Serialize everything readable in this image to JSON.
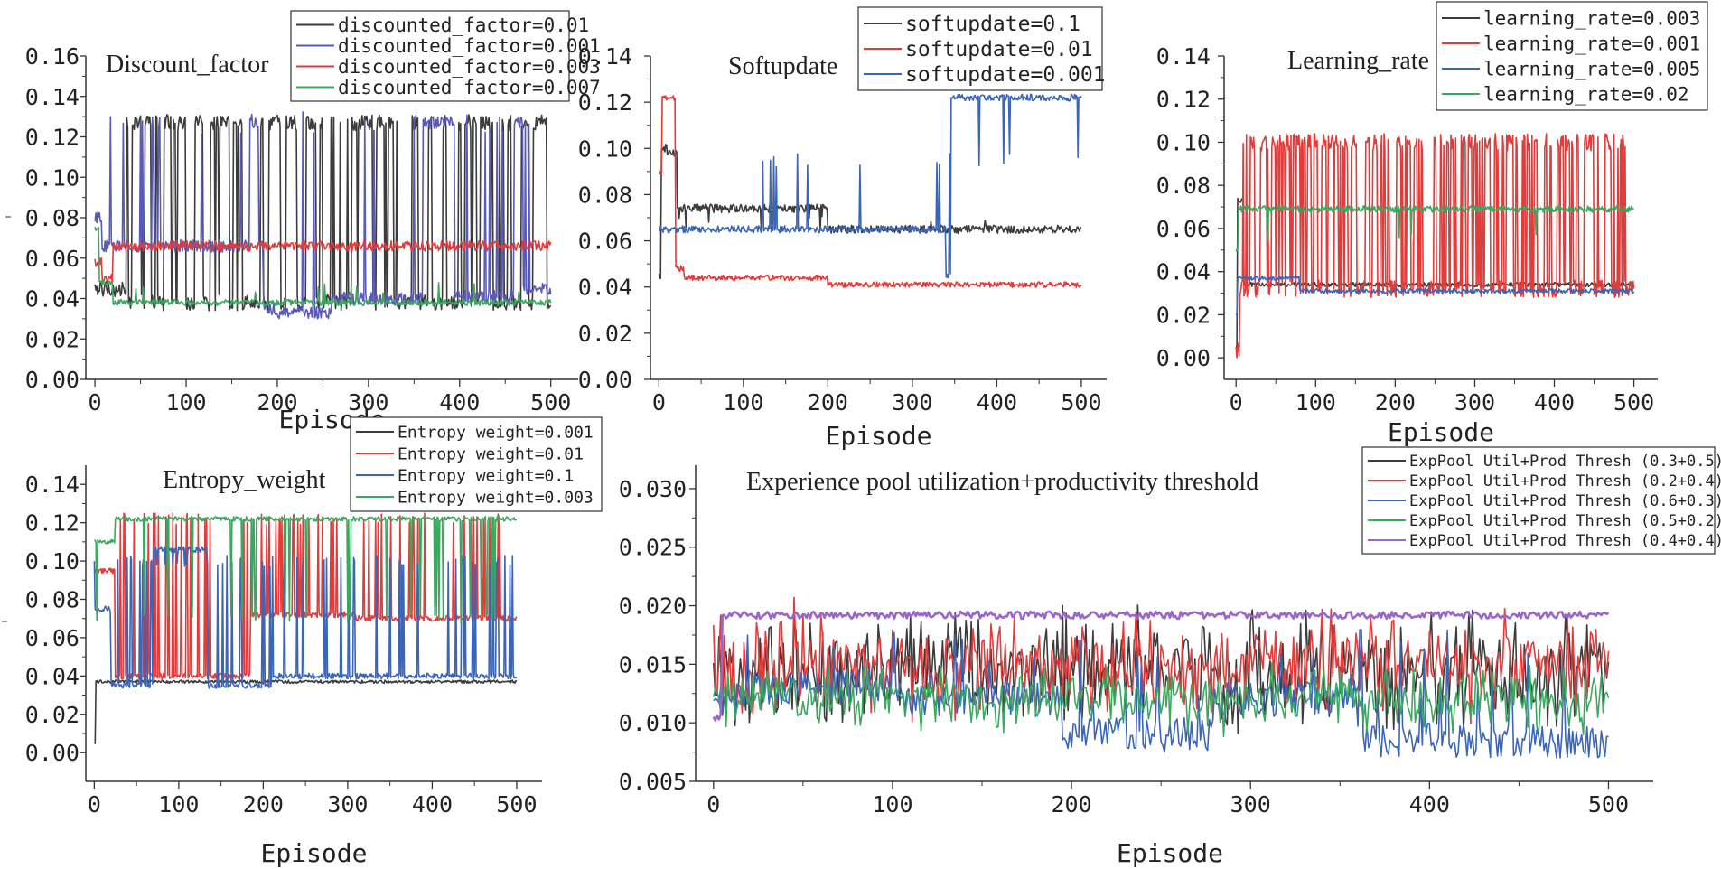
{
  "chart_data": [
    {
      "type": "line",
      "title": "Discount_factor",
      "xlabel": "Episode",
      "ylabel": "",
      "xlim": [
        -10,
        530
      ],
      "ylim": [
        0.0,
        0.16
      ],
      "xticks": [
        0,
        100,
        200,
        300,
        400,
        500
      ],
      "xtick_labels": [
        "0",
        "100",
        "200",
        "300",
        "400",
        "500"
      ],
      "yticks": [
        0.0,
        0.02,
        0.04,
        0.06,
        0.08,
        0.1,
        0.12,
        0.14,
        0.16
      ],
      "ytick_labels": [
        "0.00",
        "0.02",
        "0.04",
        "0.06",
        "0.08",
        "0.10",
        "0.12",
        "0.14",
        "0.16"
      ],
      "legend_position": "top-right",
      "series": [
        {
          "name": "discounted_factor=0.01",
          "color": "#3c3c3c",
          "pattern": "switch",
          "seed": 11,
          "lo": 0.038,
          "hi": 0.127,
          "start": 0.045,
          "phase_end": 35,
          "noise": 0.004,
          "switch_prob": 0.22,
          "start_hi": 1
        },
        {
          "name": "discounted_factor=0.001",
          "color": "#5a5ab8",
          "pattern": "blocks",
          "seed": 23,
          "noise": 0.003,
          "blocks": [
            [
              0,
              8,
              0.08
            ],
            [
              8,
              170,
              0.066
            ],
            [
              170,
              180,
              0.127
            ],
            [
              180,
              185,
              0.066
            ],
            [
              185,
              200,
              0.035
            ],
            [
              200,
              260,
              0.033
            ],
            [
              260,
              330,
              0.04
            ],
            [
              330,
              360,
              0.04
            ],
            [
              360,
              395,
              0.127
            ],
            [
              395,
              460,
              0.041
            ],
            [
              460,
              470,
              0.127
            ],
            [
              470,
              501,
              0.045
            ]
          ],
          "spike_prob": 0.04,
          "spike_val": 0.127
        },
        {
          "name": "discounted_factor=0.003",
          "color": "#e33a3a",
          "pattern": "blocks",
          "seed": 37,
          "noise": 0.0025,
          "blocks": [
            [
              0,
              8,
              0.058
            ],
            [
              8,
              20,
              0.05
            ],
            [
              20,
              501,
              0.066
            ]
          ],
          "spike_prob": 0.0,
          "spike_val": 0.066
        },
        {
          "name": "discounted_factor=0.007",
          "color": "#3aa85f",
          "pattern": "blocks",
          "seed": 51,
          "noise": 0.0015,
          "blocks": [
            [
              0,
              5,
              0.075
            ],
            [
              5,
              20,
              0.048
            ],
            [
              20,
              501,
              0.038
            ]
          ],
          "spike_prob": 0.015,
          "spike_val": 0.045
        }
      ]
    },
    {
      "type": "line",
      "title": "Softupdate",
      "xlabel": "Episode",
      "ylabel": "",
      "xlim": [
        -10,
        530
      ],
      "ylim": [
        0.0,
        0.14
      ],
      "xticks": [
        0,
        100,
        200,
        300,
        400,
        500
      ],
      "xtick_labels": [
        "0",
        "100",
        "200",
        "300",
        "400",
        "500"
      ],
      "yticks": [
        0.0,
        0.02,
        0.04,
        0.06,
        0.08,
        0.1,
        0.12,
        0.14
      ],
      "ytick_labels": [
        "0.00",
        "0.02",
        "0.04",
        "0.06",
        "0.08",
        "0.10",
        "0.12",
        "0.14"
      ],
      "legend_position": "top-right",
      "series": [
        {
          "name": "softupdate=0.1",
          "color": "#3c3c3c",
          "pattern": "blocks",
          "seed": 61,
          "noise": 0.0018,
          "blocks": [
            [
              0,
              3,
              0.045
            ],
            [
              3,
              10,
              0.1
            ],
            [
              10,
              22,
              0.098
            ],
            [
              22,
              200,
              0.074
            ],
            [
              200,
              501,
              0.065
            ]
          ],
          "spike_prob": 0.02,
          "spike_val": 0.068
        },
        {
          "name": "softupdate=0.01",
          "color": "#e33a3a",
          "pattern": "blocks",
          "seed": 73,
          "noise": 0.0012,
          "blocks": [
            [
              0,
              4,
              0.09
            ],
            [
              4,
              20,
              0.122
            ],
            [
              20,
              30,
              0.048
            ],
            [
              30,
              200,
              0.044
            ],
            [
              200,
              501,
              0.041
            ]
          ],
          "spike_prob": 0.0,
          "spike_val": 0.044
        },
        {
          "name": "softupdate=0.001",
          "color": "#3a65b8",
          "pattern": "blocks",
          "seed": 89,
          "noise": 0.0015,
          "blocks": [
            [
              0,
              340,
              0.065
            ],
            [
              340,
              346,
              0.045
            ],
            [
              346,
              501,
              0.122
            ]
          ],
          "spike_prob": 0.025,
          "spike_val": 0.095
        }
      ]
    },
    {
      "type": "line",
      "title": "Learning_rate",
      "xlabel": "Episode",
      "ylabel": "",
      "xlim": [
        -15,
        530
      ],
      "ylim": [
        -0.01,
        0.14
      ],
      "xticks": [
        0,
        100,
        200,
        300,
        400,
        500
      ],
      "xtick_labels": [
        "0",
        "100",
        "200",
        "300",
        "400",
        "500"
      ],
      "yticks": [
        0.0,
        0.02,
        0.04,
        0.06,
        0.08,
        0.1,
        0.12,
        0.14
      ],
      "ytick_labels": [
        "0.00",
        "0.02",
        "0.04",
        "0.06",
        "0.08",
        "0.10",
        "0.12",
        "0.14"
      ],
      "legend_position": "top-right",
      "series": [
        {
          "name": "learning_rate=0.003",
          "color": "#3c3c3c",
          "pattern": "blocks",
          "seed": 97,
          "noise": 0.001,
          "blocks": [
            [
              0,
              2,
              0.005
            ],
            [
              2,
              10,
              0.073
            ],
            [
              10,
              501,
              0.034
            ]
          ],
          "spike_prob": 0.0,
          "spike_val": 0.034
        },
        {
          "name": "learning_rate=0.001",
          "color": "#e33a3a",
          "pattern": "switch",
          "seed": 103,
          "lo": 0.032,
          "hi": 0.1,
          "start": 0.003,
          "phase_end": 5,
          "noise": 0.004,
          "switch_prob": 0.3,
          "start_hi": 1
        },
        {
          "name": "learning_rate=0.005",
          "color": "#3a65b8",
          "pattern": "blocks",
          "seed": 109,
          "noise": 0.001,
          "blocks": [
            [
              0,
              2,
              0.02
            ],
            [
              2,
              80,
              0.037
            ],
            [
              80,
              501,
              0.031
            ]
          ],
          "spike_prob": 0.0,
          "spike_val": 0.031
        },
        {
          "name": "learning_rate=0.02",
          "color": "#3aa85f",
          "pattern": "blocks",
          "seed": 113,
          "noise": 0.0015,
          "blocks": [
            [
              0,
              3,
              0.05
            ],
            [
              3,
              501,
              0.069
            ]
          ],
          "spike_prob": 0.02,
          "spike_val": 0.055
        }
      ]
    },
    {
      "type": "line",
      "title": "Entropy_weight",
      "xlabel": "Episode",
      "ylabel": "",
      "xlim": [
        -10,
        530
      ],
      "ylim": [
        -0.015,
        0.15
      ],
      "xticks": [
        0,
        100,
        200,
        300,
        400,
        500
      ],
      "xtick_labels": [
        "0",
        "100",
        "200",
        "300",
        "400",
        "500"
      ],
      "yticks": [
        0.0,
        0.02,
        0.04,
        0.06,
        0.08,
        0.1,
        0.12,
        0.14
      ],
      "ytick_labels": [
        "0.00",
        "0.02",
        "0.04",
        "0.06",
        "0.08",
        "0.10",
        "0.12",
        "0.14"
      ],
      "legend_position": "top-right",
      "series": [
        {
          "name": "Entropy weight=0.001",
          "color": "#3c3c3c",
          "pattern": "blocks",
          "seed": 127,
          "noise": 0.0008,
          "blocks": [
            [
              0,
              2,
              0.005
            ],
            [
              2,
              501,
              0.037
            ]
          ],
          "spike_prob": 0.0,
          "spike_val": 0.037
        },
        {
          "name": "Entropy weight=0.01",
          "color": "#e33a3a",
          "pattern": "blocks",
          "seed": 131,
          "noise": 0.0015,
          "blocks": [
            [
              0,
              25,
              0.095
            ],
            [
              25,
              185,
              0.04
            ],
            [
              185,
              310,
              0.072
            ],
            [
              310,
              501,
              0.07
            ]
          ],
          "spike_prob": 0.12,
          "spike_val": 0.122
        },
        {
          "name": "Entropy weight=0.1",
          "color": "#3a65b8",
          "pattern": "blocks",
          "seed": 137,
          "noise": 0.0015,
          "blocks": [
            [
              0,
              20,
              0.075
            ],
            [
              20,
              70,
              0.035
            ],
            [
              70,
              135,
              0.106
            ],
            [
              135,
              210,
              0.035
            ],
            [
              210,
              501,
              0.04
            ]
          ],
          "spike_prob": 0.12,
          "spike_val": 0.1
        },
        {
          "name": "Entropy weight=0.003",
          "color": "#3aa85f",
          "pattern": "blocks",
          "seed": 139,
          "noise": 0.0012,
          "blocks": [
            [
              0,
              25,
              0.11
            ],
            [
              25,
              501,
              0.122
            ]
          ],
          "spike_prob": 0.07,
          "spike_val": 0.07
        }
      ]
    },
    {
      "type": "line",
      "title": "Experience pool utilization+productivity threshold",
      "xlabel": "Episode",
      "ylabel": "",
      "xlim": [
        -10,
        525
      ],
      "ylim": [
        0.005,
        0.032
      ],
      "xticks": [
        0,
        100,
        200,
        300,
        400,
        500
      ],
      "xtick_labels": [
        "0",
        "100",
        "200",
        "300",
        "400",
        "500"
      ],
      "yticks": [
        0.005,
        0.01,
        0.015,
        0.02,
        0.025,
        0.03
      ],
      "ytick_labels": [
        "0.005",
        "0.010",
        "0.015",
        "0.020",
        "0.025",
        "0.030"
      ],
      "legend_position": "top-right",
      "series": [
        {
          "name": "ExpPool Util+Prod Thresh (0.3+0.5)",
          "color": "#3c3c3c",
          "pattern": "noise",
          "seed": 151,
          "base": 0.0145,
          "noise": 0.0045
        },
        {
          "name": "ExpPool Util+Prod Thresh (0.2+0.4)",
          "color": "#e33a3a",
          "pattern": "noise",
          "seed": 157,
          "base": 0.015,
          "noise": 0.004
        },
        {
          "name": "ExpPool Util+Prod Thresh (0.6+0.3)",
          "color": "#3a65b8",
          "pattern": "blocks",
          "seed": 163,
          "noise": 0.0015,
          "blocks": [
            [
              0,
              20,
              0.012
            ],
            [
              20,
              100,
              0.013
            ],
            [
              100,
              195,
              0.012
            ],
            [
              195,
              280,
              0.009
            ],
            [
              280,
              360,
              0.012
            ],
            [
              360,
              501,
              0.0085
            ]
          ],
          "spike_prob": 0.1,
          "spike_val": 0.015
        },
        {
          "name": "ExpPool Util+Prod Thresh (0.5+0.2)",
          "color": "#3aa85f",
          "pattern": "noise",
          "seed": 167,
          "base": 0.012,
          "noise": 0.0025
        },
        {
          "name": "ExpPool Util+Prod Thresh (0.4+0.4)",
          "color": "#9a66c8",
          "pattern": "blocks",
          "seed": 173,
          "noise": 0.0003,
          "blocks": [
            [
              0,
              5,
              0.0105
            ],
            [
              5,
              501,
              0.0192
            ]
          ],
          "spike_prob": 0.0,
          "spike_val": 0.019
        }
      ]
    }
  ]
}
